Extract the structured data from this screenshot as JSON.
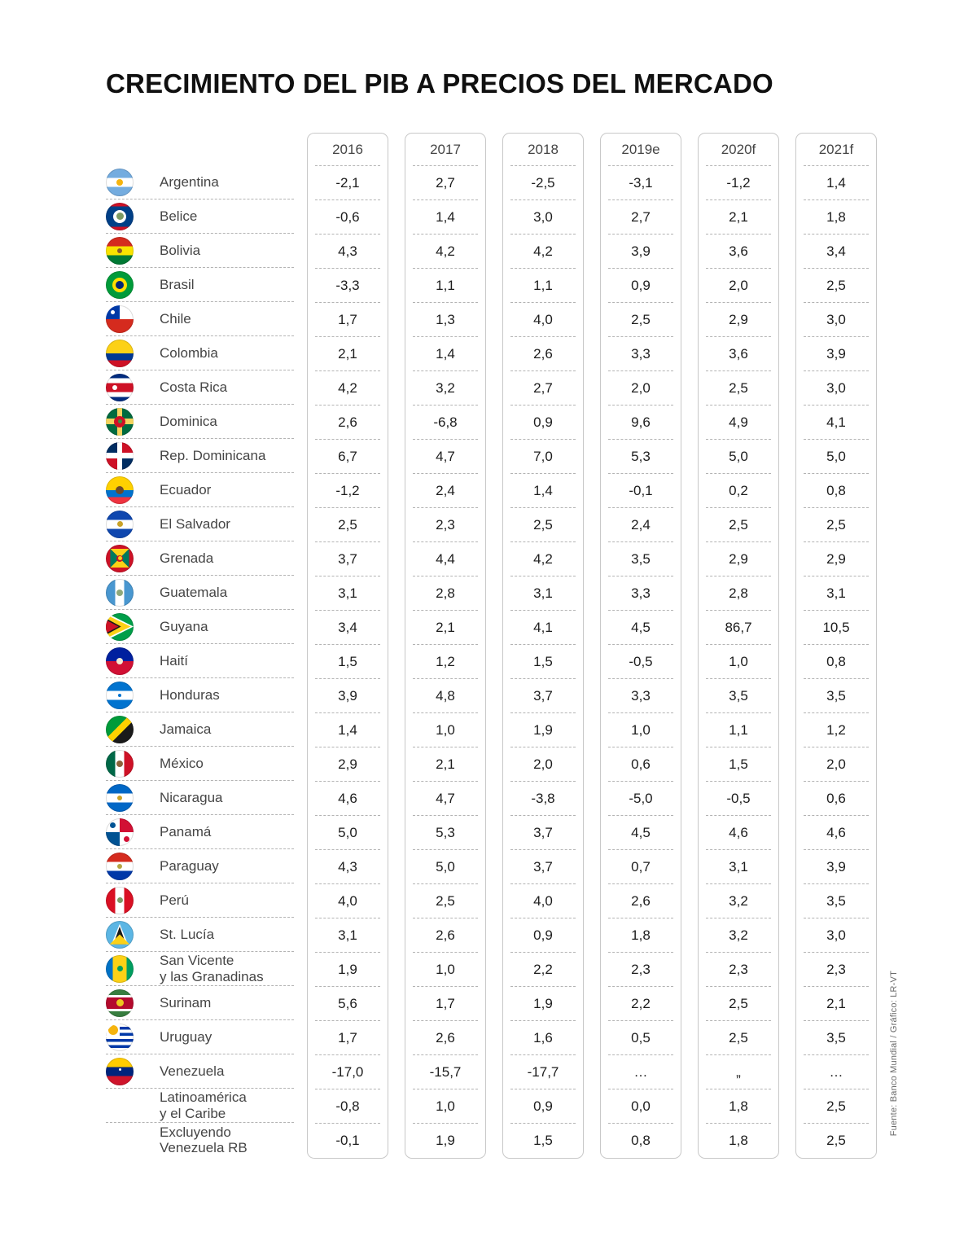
{
  "title": "CRECIMIENTO DEL PIB A PRECIOS DEL MERCADO",
  "source": "Fuente: Banco Mundial / Gráfico: LR-VT",
  "chart_data": {
    "type": "table",
    "title": "CRECIMIENTO DEL PIB A PRECIOS DEL MERCADO",
    "columns": [
      "2016",
      "2017",
      "2018",
      "2019e",
      "2020f",
      "2021f"
    ],
    "rows": [
      {
        "name": "Argentina",
        "values": [
          "-2,1",
          "2,7",
          "-2,5",
          "-3,1",
          "-1,2",
          "1,4"
        ],
        "flag": {
          "stripes": {
            "dir": "h",
            "bands": [
              [
                "#74ACDF",
                1
              ],
              [
                "#FFFFFF",
                1
              ],
              [
                "#74ACDF",
                1
              ]
            ]
          },
          "emblems": [
            {
              "c": "#F6B40E",
              "r": 4
            }
          ]
        }
      },
      {
        "name": "Belice",
        "values": [
          "-0,6",
          "1,4",
          "3,0",
          "2,7",
          "2,1",
          "1,8"
        ],
        "flag": {
          "stripes": {
            "dir": "h",
            "bands": [
              [
                "#CE1126",
                1
              ],
              [
                "#003F87",
                6
              ],
              [
                "#CE1126",
                1
              ]
            ]
          },
          "emblems": [
            {
              "c": "#FFFFFF",
              "r": 8
            },
            {
              "c": "#7C9A62",
              "r": 4.5
            }
          ]
        }
      },
      {
        "name": "Bolivia",
        "values": [
          "4,3",
          "4,2",
          "4,2",
          "3,9",
          "3,6",
          "3,4"
        ],
        "flag": {
          "stripes": {
            "dir": "h",
            "bands": [
              [
                "#D52B1E",
                1
              ],
              [
                "#F9E300",
                1
              ],
              [
                "#007934",
                1
              ]
            ]
          },
          "emblems": [
            {
              "c": "#8A5A2B",
              "r": 3
            }
          ]
        }
      },
      {
        "name": "Brasil",
        "values": [
          "-3,3",
          "1,1",
          "1,1",
          "0,9",
          "2,0",
          "2,5"
        ],
        "flag": {
          "bg": "#009B3A",
          "emblems": [
            {
              "c": "#FEDF00",
              "r": 9
            },
            {
              "c": "#002776",
              "r": 5
            }
          ]
        }
      },
      {
        "name": "Chile",
        "values": [
          "1,7",
          "1,3",
          "4,0",
          "2,5",
          "2,9",
          "3,0"
        ],
        "flag": {
          "stripes": {
            "dir": "h",
            "bands": [
              [
                "#FFFFFF",
                1
              ],
              [
                "#D52B1E",
                1
              ]
            ]
          },
          "canton": "#0039A6",
          "emblems": [
            {
              "c": "#FFFFFF",
              "r": 2.5,
              "x": 25,
              "y": 25
            }
          ]
        }
      },
      {
        "name": "Colombia",
        "values": [
          "2,1",
          "1,4",
          "2,6",
          "3,3",
          "3,6",
          "3,9"
        ],
        "flag": {
          "stripes": {
            "dir": "h",
            "bands": [
              [
                "#FCD116",
                2
              ],
              [
                "#003893",
                1
              ],
              [
                "#CE1126",
                1
              ]
            ]
          }
        }
      },
      {
        "name": "Costa Rica",
        "values": [
          "4,2",
          "3,2",
          "2,7",
          "2,0",
          "2,5",
          "3,0"
        ],
        "flag": {
          "stripes": {
            "dir": "h",
            "bands": [
              [
                "#002B7F",
                1
              ],
              [
                "#FFFFFF",
                1
              ],
              [
                "#CE1126",
                2
              ],
              [
                "#FFFFFF",
                1
              ],
              [
                "#002B7F",
                1
              ]
            ]
          },
          "emblems": [
            {
              "c": "#FFFFFF",
              "r": 3,
              "x": 32,
              "y": 50
            }
          ]
        }
      },
      {
        "name": "Dominica",
        "values": [
          "2,6",
          "-6,8",
          "0,9",
          "9,6",
          "4,9",
          "4,1"
        ],
        "flag": {
          "bg": "#006B3F",
          "cross": "#F4D35E",
          "emblems": [
            {
              "c": "#CE1126",
              "r": 7
            },
            {
              "c": "#3E8E41",
              "r": 2.5
            }
          ]
        }
      },
      {
        "name": "Rep. Dominicana",
        "values": [
          "6,7",
          "4,7",
          "7,0",
          "5,3",
          "5,0",
          "5,0"
        ],
        "flag": {
          "quarters": [
            "#002D62",
            "#CE1126",
            "#CE1126",
            "#002D62"
          ],
          "cross": "#FFFFFF"
        }
      },
      {
        "name": "Ecuador",
        "values": [
          "-1,2",
          "2,4",
          "1,4",
          "-0,1",
          "0,2",
          "0,8"
        ],
        "flag": {
          "stripes": {
            "dir": "h",
            "bands": [
              [
                "#FFD100",
                2
              ],
              [
                "#0072CE",
                1
              ],
              [
                "#EF3340",
                1
              ]
            ]
          },
          "emblems": [
            {
              "c": "#6B4A2B",
              "r": 5
            }
          ]
        }
      },
      {
        "name": "El Salvador",
        "values": [
          "2,5",
          "2,3",
          "2,5",
          "2,4",
          "2,5",
          "2,5"
        ],
        "flag": {
          "stripes": {
            "dir": "h",
            "bands": [
              [
                "#0F47AF",
                1
              ],
              [
                "#FFFFFF",
                1
              ],
              [
                "#0F47AF",
                1
              ]
            ]
          },
          "emblems": [
            {
              "c": "#C9A227",
              "r": 3.5
            }
          ]
        }
      },
      {
        "name": "Grenada",
        "values": [
          "3,7",
          "4,4",
          "4,2",
          "3,5",
          "2,9",
          "2,9"
        ],
        "flag": {
          "bg": "#CE1126",
          "tris": [
            {
              "c": "#FCD116",
              "p": "16% 16%, 84% 16%, 50% 50%"
            },
            {
              "c": "#FCD116",
              "p": "16% 84%, 50% 50%, 84% 84%"
            },
            {
              "c": "#007A5E",
              "p": "16% 16%, 50% 50%, 16% 84%"
            },
            {
              "c": "#007A5E",
              "p": "84% 16%, 84% 84%, 50% 50%"
            }
          ],
          "emblems": [
            {
              "c": "#CE1126",
              "r": 4
            },
            {
              "c": "#FCD116",
              "r": 2.5
            }
          ]
        }
      },
      {
        "name": "Guatemala",
        "values": [
          "3,1",
          "2,8",
          "3,1",
          "3,3",
          "2,8",
          "3,1"
        ],
        "flag": {
          "stripes": {
            "dir": "v",
            "bands": [
              [
                "#4997D0",
                1
              ],
              [
                "#FFFFFF",
                1
              ],
              [
                "#4997D0",
                1
              ]
            ]
          },
          "emblems": [
            {
              "c": "#8FA87A",
              "r": 4
            }
          ]
        }
      },
      {
        "name": "Guyana",
        "values": [
          "3,4",
          "2,1",
          "4,1",
          "4,5",
          "86,7",
          "10,5"
        ],
        "flag": {
          "bg": "#009E49",
          "tris": [
            {
              "c": "#FFFFFF",
              "p": "0% 0%, 100% 50%, 0% 100%"
            },
            {
              "c": "#FCD116",
              "p": "0% 7%, 90% 50%, 0% 93%"
            },
            {
              "c": "#1A1A1A",
              "p": "0% 20%, 55% 50%, 0% 80%"
            },
            {
              "c": "#CE1126",
              "p": "0% 26%, 46% 50%, 0% 74%"
            }
          ]
        }
      },
      {
        "name": "Haití",
        "values": [
          "1,5",
          "1,2",
          "1,5",
          "-0,5",
          "1,0",
          "0,8"
        ],
        "flag": {
          "stripes": {
            "dir": "h",
            "bands": [
              [
                "#00209F",
                1
              ],
              [
                "#D21034",
                1
              ]
            ]
          },
          "emblems": [
            {
              "c": "#F3EBD3",
              "r": 4
            }
          ]
        }
      },
      {
        "name": "Honduras",
        "values": [
          "3,9",
          "4,8",
          "3,7",
          "3,3",
          "3,5",
          "3,5"
        ],
        "flag": {
          "stripes": {
            "dir": "h",
            "bands": [
              [
                "#0073CF",
                1
              ],
              [
                "#FFFFFF",
                1
              ],
              [
                "#0073CF",
                1
              ]
            ]
          },
          "emblems": [
            {
              "c": "#0073CF",
              "r": 2
            }
          ]
        }
      },
      {
        "name": "Jamaica",
        "values": [
          "1,4",
          "1,0",
          "1,9",
          "1,0",
          "1,1",
          "1,2"
        ],
        "flag": {
          "stripes": {
            "dir": "d",
            "bands": [
              [
                "#009B3A",
                5
              ],
              [
                "#FED100",
                2
              ],
              [
                "#1A1A1A",
                5
              ]
            ]
          }
        }
      },
      {
        "name": "México",
        "values": [
          "2,9",
          "2,1",
          "2,0",
          "0,6",
          "1,5",
          "2,0"
        ],
        "flag": {
          "stripes": {
            "dir": "v",
            "bands": [
              [
                "#006847",
                1
              ],
              [
                "#FFFFFF",
                1
              ],
              [
                "#CE1126",
                1
              ]
            ]
          },
          "emblems": [
            {
              "c": "#8C6239",
              "r": 4
            }
          ]
        }
      },
      {
        "name": "Nicaragua",
        "values": [
          "4,6",
          "4,7",
          "-3,8",
          "-5,0",
          "-0,5",
          "0,6"
        ],
        "flag": {
          "stripes": {
            "dir": "h",
            "bands": [
              [
                "#0067C6",
                1
              ],
              [
                "#FFFFFF",
                1
              ],
              [
                "#0067C6",
                1
              ]
            ]
          },
          "emblems": [
            {
              "c": "#C9A227",
              "r": 3
            }
          ]
        }
      },
      {
        "name": "Panamá",
        "values": [
          "5,0",
          "5,3",
          "3,7",
          "4,5",
          "4,6",
          "4,6"
        ],
        "flag": {
          "quarters": [
            "#FFFFFF",
            "#D21034",
            "#005293",
            "#FFFFFF"
          ],
          "emblems": [
            {
              "c": "#005293",
              "r": 3.5,
              "x": 25,
              "y": 25
            },
            {
              "c": "#D21034",
              "r": 3.5,
              "x": 75,
              "y": 75
            }
          ]
        }
      },
      {
        "name": "Paraguay",
        "values": [
          "4,3",
          "5,0",
          "3,7",
          "0,7",
          "3,1",
          "3,9"
        ],
        "flag": {
          "stripes": {
            "dir": "h",
            "bands": [
              [
                "#D52B1E",
                1
              ],
              [
                "#FFFFFF",
                1
              ],
              [
                "#0038A8",
                1
              ]
            ]
          },
          "emblems": [
            {
              "c": "#B5A642",
              "r": 3
            }
          ]
        }
      },
      {
        "name": "Perú",
        "values": [
          "4,0",
          "2,5",
          "4,0",
          "2,6",
          "3,2",
          "3,5"
        ],
        "flag": {
          "stripes": {
            "dir": "v",
            "bands": [
              [
                "#D91023",
                1
              ],
              [
                "#FFFFFF",
                1
              ],
              [
                "#D91023",
                1
              ]
            ]
          },
          "emblems": [
            {
              "c": "#7C9A62",
              "r": 3.5
            }
          ]
        }
      },
      {
        "name": "St. Lucía",
        "values": [
          "3,1",
          "2,6",
          "0,9",
          "1,8",
          "3,2",
          "3,0"
        ],
        "flag": {
          "bg": "#5CB6E4",
          "tris": [
            {
              "c": "#FFFFFF",
              "p": "50% 12%, 80% 86%, 20% 86%"
            },
            {
              "c": "#1A1A1A",
              "p": "50% 22%, 73% 86%, 27% 86%"
            },
            {
              "c": "#FCD116",
              "p": "50% 50%, 86% 86%, 14% 86%"
            }
          ]
        }
      },
      {
        "name": "San Vicente y las Granadinas",
        "name_lines": [
          "San Vicente",
          "y las Granadinas"
        ],
        "values": [
          "1,9",
          "1,0",
          "2,2",
          "2,3",
          "2,3",
          "2,3"
        ],
        "flag": {
          "stripes": {
            "dir": "v",
            "bands": [
              [
                "#0072C6",
                1
              ],
              [
                "#FCD116",
                2
              ],
              [
                "#009E60",
                1
              ]
            ]
          },
          "emblems": [
            {
              "c": "#009E60",
              "r": 3.5
            }
          ]
        }
      },
      {
        "name": "Surinam",
        "values": [
          "5,6",
          "1,7",
          "1,9",
          "2,2",
          "2,5",
          "2,1"
        ],
        "flag": {
          "stripes": {
            "dir": "h",
            "bands": [
              [
                "#377E3F",
                2
              ],
              [
                "#FFFFFF",
                1
              ],
              [
                "#B40A2D",
                4
              ],
              [
                "#FFFFFF",
                1
              ],
              [
                "#377E3F",
                2
              ]
            ]
          },
          "emblems": [
            {
              "c": "#ECC81D",
              "r": 4.5
            }
          ]
        }
      },
      {
        "name": "Uruguay",
        "values": [
          "1,7",
          "2,6",
          "1,6",
          "0,5",
          "2,5",
          "3,5"
        ],
        "flag": {
          "stripes": {
            "dir": "h",
            "bands": [
              [
                "#FFFFFF",
                1
              ],
              [
                "#0038A8",
                1
              ],
              [
                "#FFFFFF",
                1
              ],
              [
                "#0038A8",
                1
              ],
              [
                "#FFFFFF",
                1
              ],
              [
                "#0038A8",
                1
              ],
              [
                "#FFFFFF",
                1
              ],
              [
                "#0038A8",
                1
              ],
              [
                "#FFFFFF",
                1
              ]
            ]
          },
          "canton": "#FFFFFF",
          "emblems": [
            {
              "c": "#F6B40E",
              "r": 6,
              "x": 25,
              "y": 25
            }
          ]
        }
      },
      {
        "name": "Venezuela",
        "values": [
          "-17,0",
          "-15,7",
          "-17,7",
          "…",
          "„",
          "…"
        ],
        "flag": {
          "stripes": {
            "dir": "h",
            "bands": [
              [
                "#FFCC00",
                1
              ],
              [
                "#00247D",
                1
              ],
              [
                "#CF142B",
                1
              ]
            ]
          },
          "emblems": [
            {
              "c": "#FFFFFF",
              "r": 1.5,
              "y": 44
            }
          ]
        }
      },
      {
        "name": "Latinoamérica y el Caribe",
        "name_lines": [
          "Latinoamérica",
          "y el Caribe"
        ],
        "values": [
          "-0,8",
          "1,0",
          "0,9",
          "0,0",
          "1,8",
          "2,5"
        ],
        "flag": null
      },
      {
        "name": "Excluyendo Venezuela RB",
        "name_lines": [
          "Excluyendo",
          "Venezuela RB"
        ],
        "values": [
          "-0,1",
          "1,9",
          "1,5",
          "0,8",
          "1,8",
          "2,5"
        ],
        "flag": null
      }
    ]
  }
}
